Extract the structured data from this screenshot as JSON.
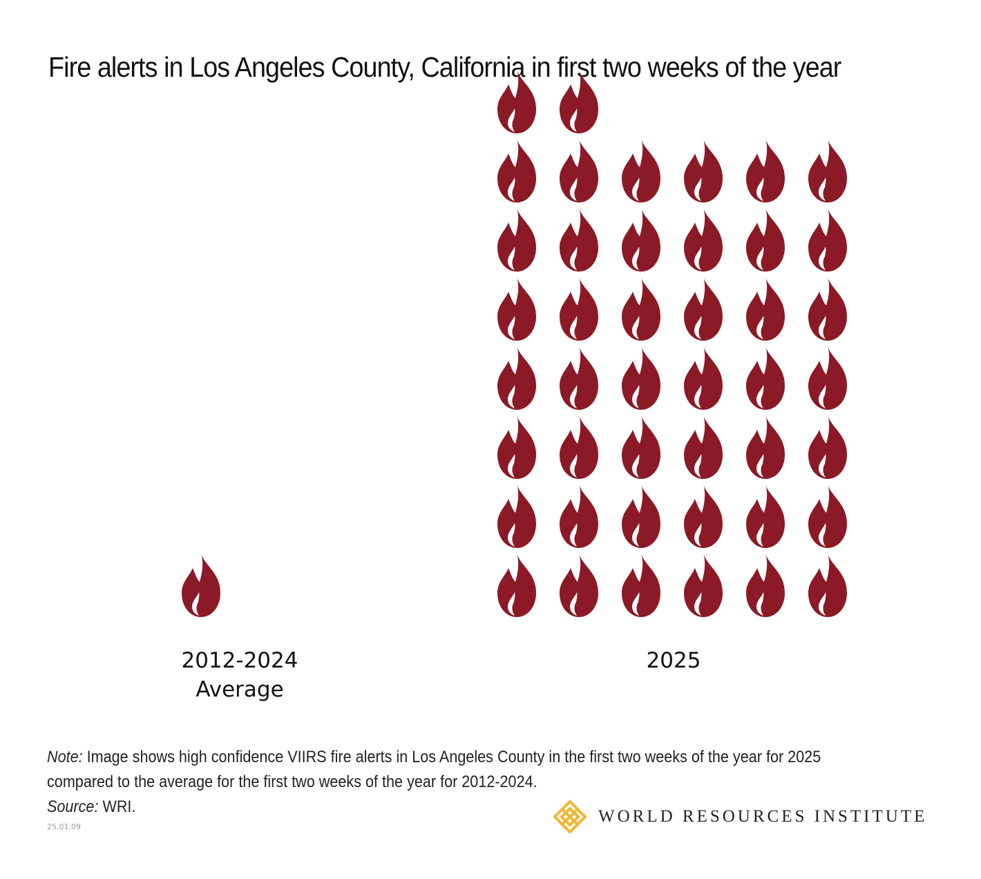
{
  "chart_data": {
    "type": "pictogram",
    "title": "Fire alerts in Los Angeles County, California in first two weeks of the year",
    "unit": "fire icon",
    "categories": [
      "2012-2024 Average",
      "2025"
    ],
    "series": [
      {
        "name": "2012-2024 Average",
        "label_lines": [
          "2012-2024",
          "Average"
        ],
        "icons": 1.5
      },
      {
        "name": "2025",
        "label_lines": [
          "2025"
        ],
        "icons": 44
      }
    ],
    "icon_color": "#8b1a26"
  },
  "note": {
    "note_label": "Note:",
    "note_text_line1": " Image shows high confidence VIIRS fire alerts in Los Angeles County in the first two weeks of the year for 2025",
    "note_text_line2": "compared to the average for the first two weeks of the year for 2012-2024.",
    "source_label": "Source:",
    "source_text": " WRI."
  },
  "date_code": "25.01.09",
  "logo": {
    "text": "WORLD RESOURCES INSTITUTE",
    "color": "#f2b632"
  }
}
